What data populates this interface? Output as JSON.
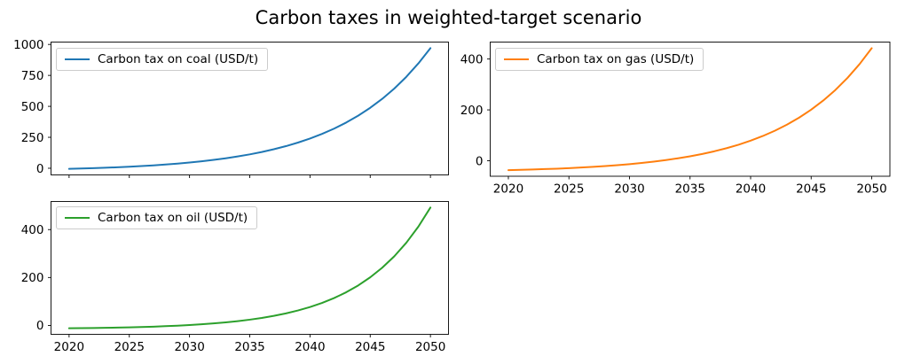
{
  "figure": {
    "title": "Carbon taxes in weighted-target scenario",
    "background": "#ffffff"
  },
  "chart_data": [
    {
      "id": "coal",
      "type": "line",
      "legend_label": "Carbon tax on coal (USD/t)",
      "legend_position": "upper left",
      "color": "#1f77b4",
      "x": [
        2020,
        2021,
        2022,
        2023,
        2024,
        2025,
        2026,
        2027,
        2028,
        2029,
        2030,
        2031,
        2032,
        2033,
        2034,
        2035,
        2036,
        2037,
        2038,
        2039,
        2040,
        2041,
        2042,
        2043,
        2044,
        2045,
        2046,
        2047,
        2048,
        2049,
        2050
      ],
      "values": [
        -5.0,
        -2.4,
        0.6,
        4.1,
        8.0,
        12.4,
        17.5,
        23.4,
        30.0,
        37.6,
        46.3,
        56.2,
        67.5,
        80.5,
        95.2,
        112.1,
        131.4,
        153.4,
        178.5,
        207.2,
        239.9,
        277.3,
        320.0,
        368.8,
        424.5,
        488.2,
        560.8,
        643.8,
        738.6,
        846.8,
        970.4
      ],
      "xlim": [
        2018.5,
        2051.5
      ],
      "ylim": [
        -53.8,
        1019.2
      ],
      "xticks": [
        2020,
        2025,
        2030,
        2035,
        2040,
        2045,
        2050
      ],
      "yticks": [
        0,
        250,
        500,
        750,
        1000
      ],
      "show_xticklabels": false,
      "grid": false
    },
    {
      "id": "gas",
      "type": "line",
      "legend_label": "Carbon tax on gas (USD/t)",
      "legend_position": "upper left",
      "color": "#ff7f0e",
      "x": [
        2020,
        2021,
        2022,
        2023,
        2024,
        2025,
        2026,
        2027,
        2028,
        2029,
        2030,
        2031,
        2032,
        2033,
        2034,
        2035,
        2036,
        2037,
        2038,
        2039,
        2040,
        2041,
        2042,
        2043,
        2044,
        2045,
        2046,
        2047,
        2048,
        2049,
        2050
      ],
      "values": [
        -37.0,
        -35.8,
        -34.5,
        -32.9,
        -31.2,
        -29.1,
        -26.8,
        -24.1,
        -21.1,
        -17.5,
        -13.5,
        -8.9,
        -3.6,
        2.5,
        9.5,
        17.5,
        26.6,
        37.1,
        49.2,
        63.0,
        78.9,
        97.1,
        118.0,
        141.9,
        169.3,
        200.8,
        236.9,
        278.3,
        325.8,
        380.2,
        442.7
      ],
      "xlim": [
        2018.5,
        2051.5
      ],
      "ylim": [
        -61.0,
        466.7
      ],
      "xticks": [
        2020,
        2025,
        2030,
        2035,
        2040,
        2045,
        2050
      ],
      "yticks": [
        0,
        200,
        400
      ],
      "show_xticklabels": true,
      "grid": false
    },
    {
      "id": "oil",
      "type": "line",
      "legend_label": "Carbon tax on oil (USD/t)",
      "legend_position": "upper left",
      "color": "#2ca02c",
      "x": [
        2020,
        2021,
        2022,
        2023,
        2024,
        2025,
        2026,
        2027,
        2028,
        2029,
        2030,
        2031,
        2032,
        2033,
        2034,
        2035,
        2036,
        2037,
        2038,
        2039,
        2040,
        2041,
        2042,
        2043,
        2044,
        2045,
        2046,
        2047,
        2048,
        2049,
        2050
      ],
      "values": [
        -12.0,
        -11.4,
        -10.8,
        -10.0,
        -9.1,
        -7.9,
        -6.6,
        -5.1,
        -3.2,
        -1.0,
        1.6,
        4.7,
        8.4,
        12.7,
        17.9,
        24.0,
        31.3,
        39.9,
        50.1,
        62.3,
        76.7,
        93.8,
        114.1,
        138.2,
        166.8,
        200.7,
        240.9,
        288.6,
        345.2,
        412.4,
        492.1
      ],
      "xlim": [
        2018.5,
        2051.5
      ],
      "ylim": [
        -37.2,
        517.3
      ],
      "xticks": [
        2020,
        2025,
        2030,
        2035,
        2040,
        2045,
        2050
      ],
      "yticks": [
        0,
        200,
        400
      ],
      "show_xticklabels": true,
      "grid": false
    }
  ]
}
